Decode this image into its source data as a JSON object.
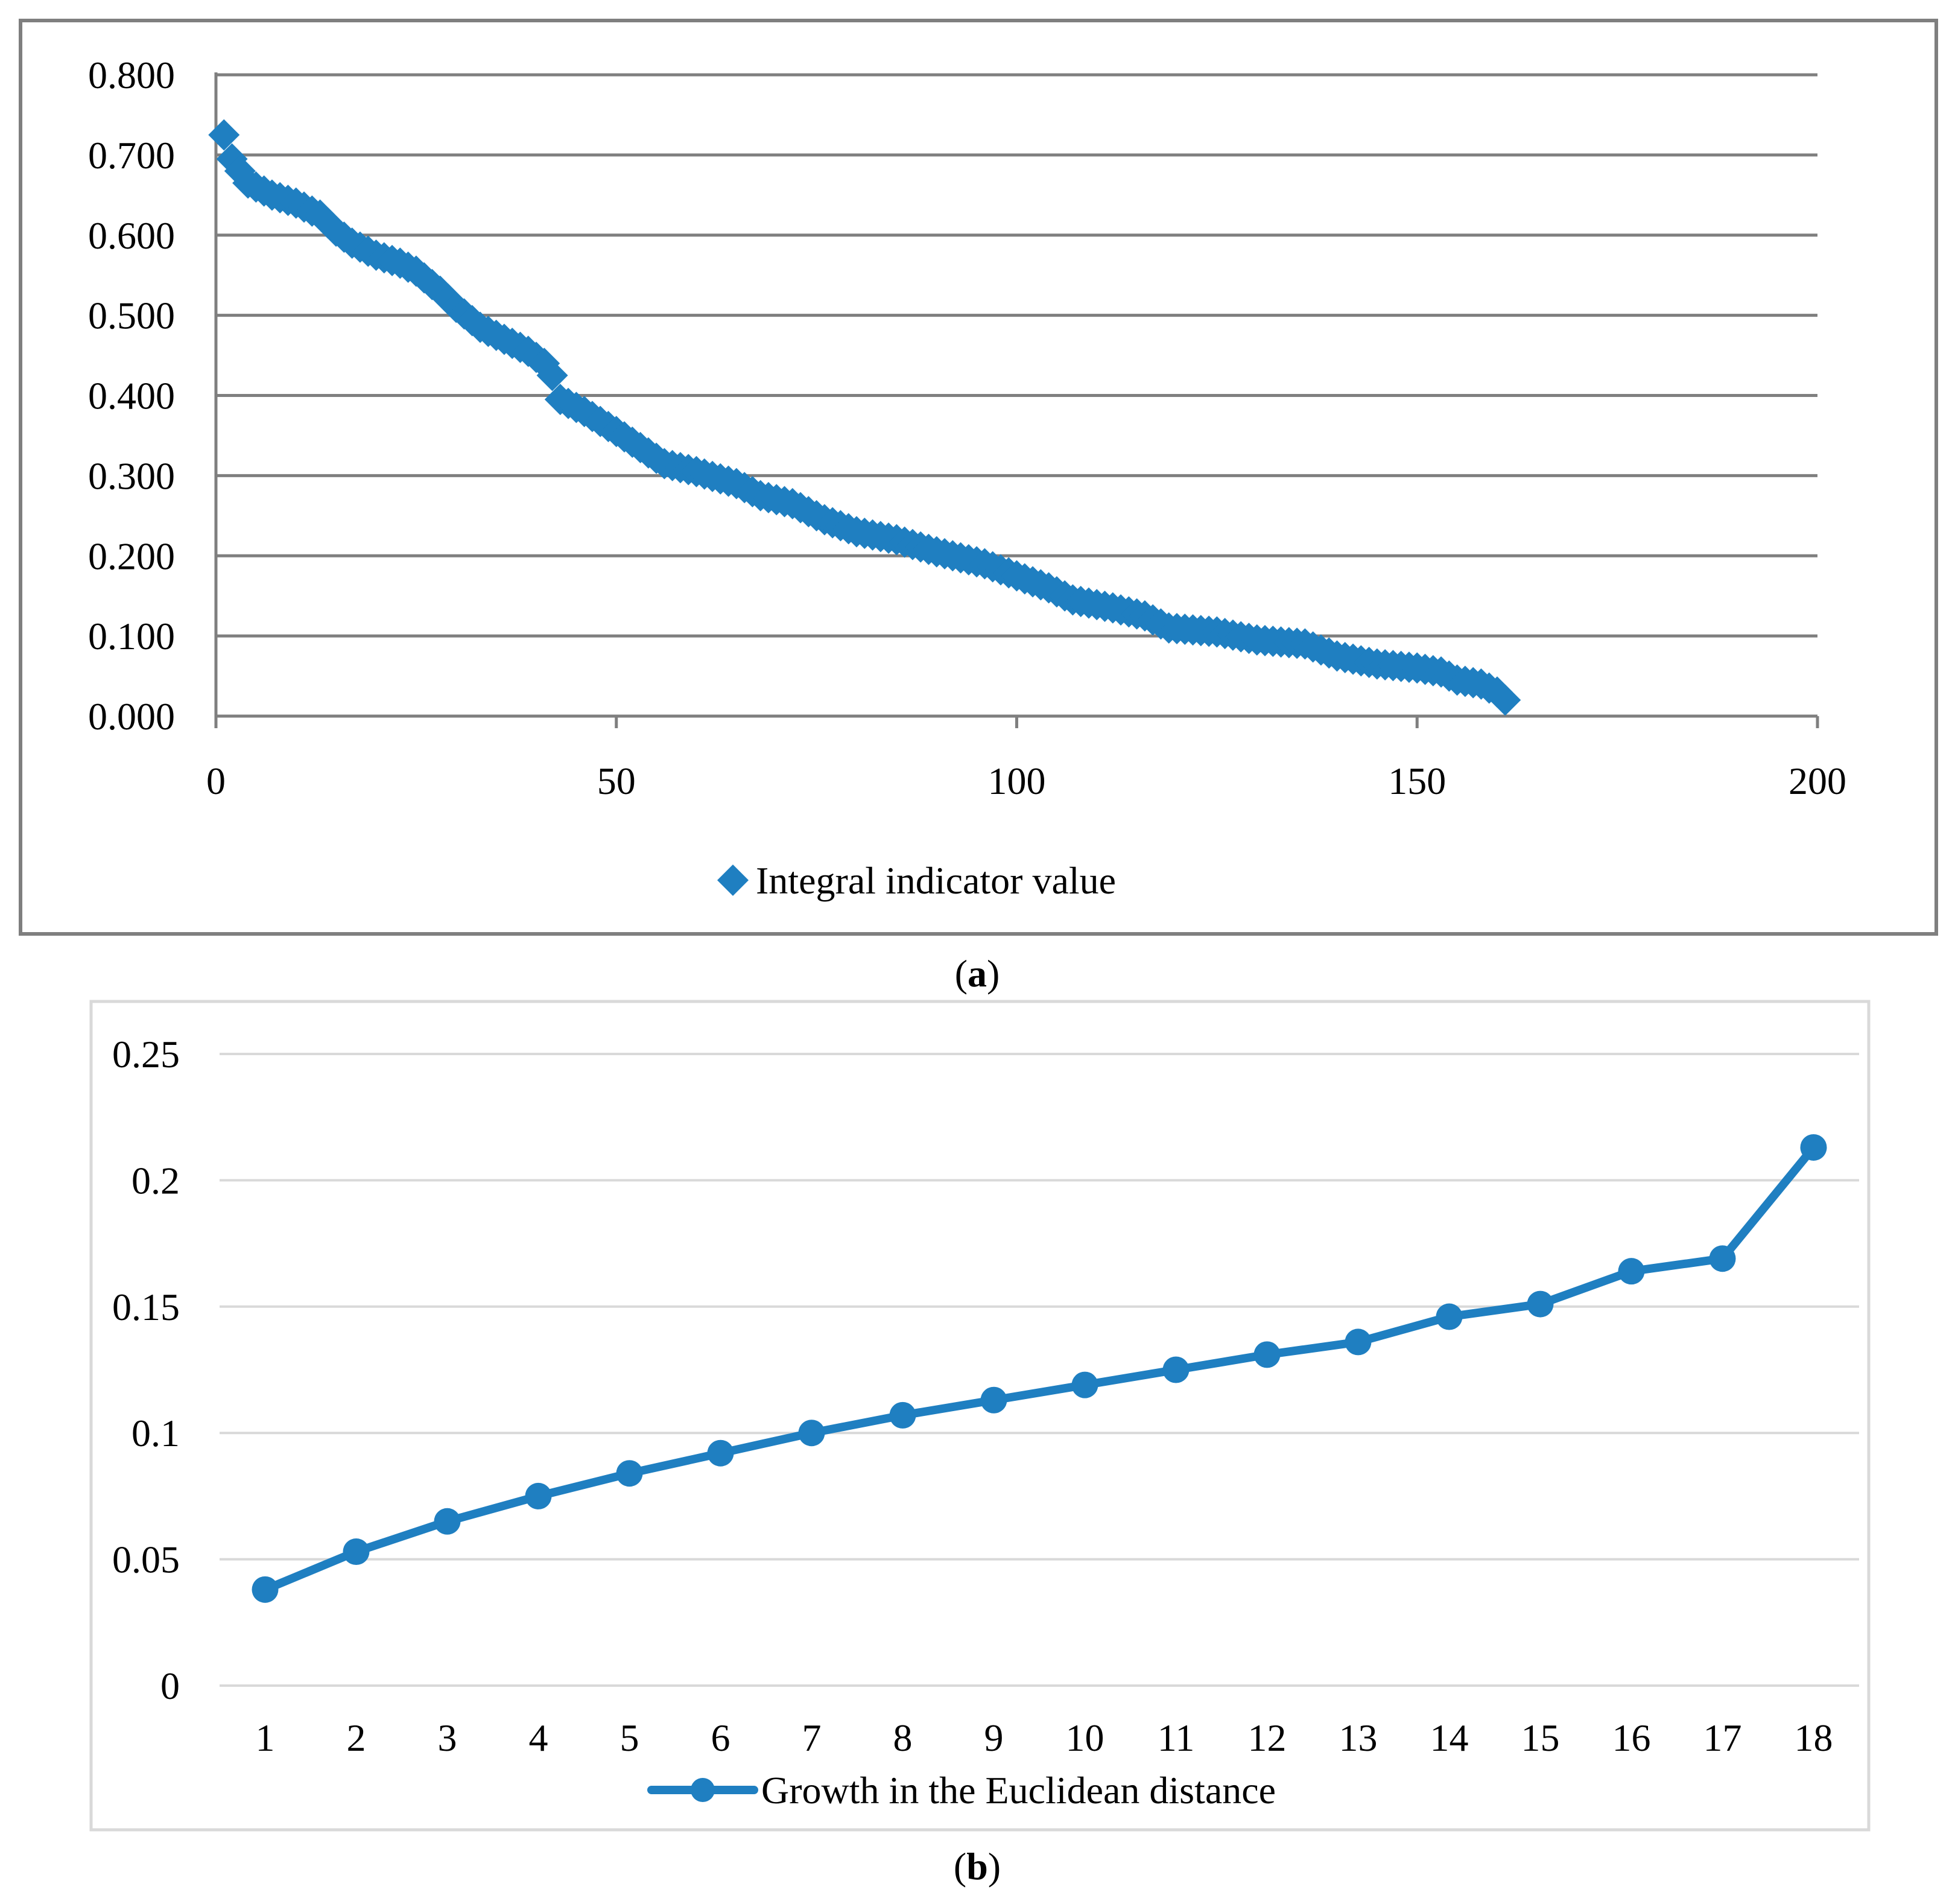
{
  "colors": {
    "series": "#1f7fc1",
    "grid": "#7f7f7f",
    "grid_b": "#d9d9d9",
    "frame_a": "#7f7f7f",
    "frame_b": "#d9d9d9"
  },
  "chart_data": [
    {
      "type": "scatter",
      "panel_label": {
        "open": "(",
        "letter": "a",
        "close": ")"
      },
      "series": [
        {
          "name": "Integral indicator value",
          "marker": "diamond"
        }
      ],
      "xlim": [
        0,
        200
      ],
      "ylim": [
        0,
        0.8
      ],
      "x_ticks": [
        "0",
        "50",
        "100",
        "150",
        "200"
      ],
      "y_ticks": [
        "0.000",
        "0.100",
        "0.200",
        "0.300",
        "0.400",
        "0.500",
        "0.600",
        "0.700",
        "0.800"
      ],
      "anchors": [
        [
          1,
          0.725
        ],
        [
          2,
          0.695
        ],
        [
          3,
          0.68
        ],
        [
          4,
          0.665
        ],
        [
          5,
          0.66
        ],
        [
          7,
          0.65
        ],
        [
          10,
          0.64
        ],
        [
          13,
          0.625
        ],
        [
          15,
          0.605
        ],
        [
          17,
          0.59
        ],
        [
          20,
          0.575
        ],
        [
          23,
          0.565
        ],
        [
          25,
          0.555
        ],
        [
          28,
          0.53
        ],
        [
          30,
          0.51
        ],
        [
          33,
          0.485
        ],
        [
          36,
          0.47
        ],
        [
          39,
          0.455
        ],
        [
          41,
          0.44
        ],
        [
          42,
          0.425
        ],
        [
          43,
          0.395
        ],
        [
          46,
          0.38
        ],
        [
          50,
          0.355
        ],
        [
          53,
          0.335
        ],
        [
          56,
          0.315
        ],
        [
          60,
          0.305
        ],
        [
          65,
          0.29
        ],
        [
          68,
          0.275
        ],
        [
          72,
          0.265
        ],
        [
          76,
          0.245
        ],
        [
          80,
          0.23
        ],
        [
          85,
          0.22
        ],
        [
          90,
          0.205
        ],
        [
          96,
          0.19
        ],
        [
          100,
          0.175
        ],
        [
          104,
          0.16
        ],
        [
          107,
          0.145
        ],
        [
          112,
          0.135
        ],
        [
          116,
          0.125
        ],
        [
          119,
          0.11
        ],
        [
          125,
          0.105
        ],
        [
          130,
          0.095
        ],
        [
          136,
          0.09
        ],
        [
          140,
          0.075
        ],
        [
          145,
          0.065
        ],
        [
          150,
          0.06
        ],
        [
          153,
          0.055
        ],
        [
          155,
          0.045
        ],
        [
          158,
          0.04
        ],
        [
          160,
          0.03
        ],
        [
          161,
          0.02
        ]
      ],
      "n_points": 161
    },
    {
      "type": "line",
      "panel_label": {
        "open": "(",
        "letter": "b",
        "close": ")"
      },
      "series": [
        {
          "name": "Growth in the Euclidean distance",
          "marker": "circle"
        }
      ],
      "categories": [
        "1",
        "2",
        "3",
        "4",
        "5",
        "6",
        "7",
        "8",
        "9",
        "10",
        "11",
        "12",
        "13",
        "14",
        "15",
        "16",
        "17",
        "18"
      ],
      "values": [
        0.038,
        0.053,
        0.065,
        0.075,
        0.084,
        0.092,
        0.1,
        0.107,
        0.113,
        0.119,
        0.125,
        0.131,
        0.136,
        0.146,
        0.151,
        0.164,
        0.169,
        0.213
      ],
      "ylim": [
        0,
        0.25
      ],
      "y_ticks": [
        "0",
        "0.05",
        "0.1",
        "0.15",
        "0.2",
        "0.25"
      ]
    }
  ]
}
